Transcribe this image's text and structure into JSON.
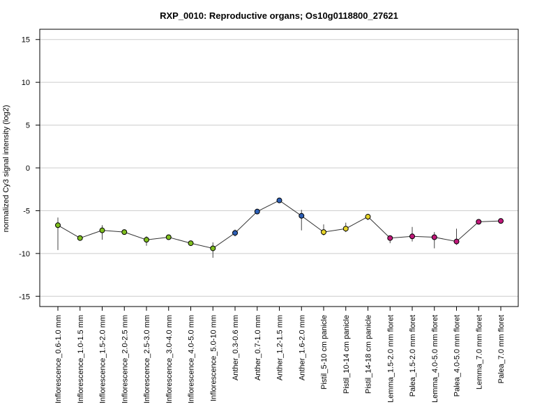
{
  "chart_data": {
    "type": "line",
    "title": "RXP_0010: Reproductive organs; Os10g0118800_27621",
    "xlabel": "",
    "ylabel": "normalized Cy3 signal intensity (log2)",
    "ylim": [
      -16.2,
      16.2
    ],
    "yticks": [
      -15,
      -10,
      -5,
      0,
      5,
      10,
      15
    ],
    "grid": true,
    "categories": [
      "Inflorescence_0.6-1.0 mm",
      "Inflorescence_1.0-1.5 mm",
      "Inflorescence_1.5-2.0 mm",
      "Inflorescence_2.0-2.5 mm",
      "Inflorescence_2.5-3.0 mm",
      "Inflorescence_3.0-4.0 mm",
      "Inflorescence_4.0-5.0 mm",
      "Inflorescence_5.0-10 mm",
      "Anther_0.3-0.6 mm",
      "Anther_0.7-1.0 mm",
      "Anther_1.2-1.5 mm",
      "Anther_1.6-2.0 mm",
      "Pistil_5-10 cm panicle",
      "Pistil_10-14 cm panicle",
      "Pistil_14-18 cm panicle",
      "Lemma_1.5-2.0 mm floret",
      "Palea_1.5-2.0 mm floret",
      "Lemma_4.0-5.0 mm floret",
      "Palea_4.0-5.0 mm floret",
      "Lemma_7.0 mm floret",
      "Palea_7.0 mm floret"
    ],
    "values": [
      -6.7,
      -8.2,
      -7.3,
      -7.5,
      -8.4,
      -8.1,
      -8.8,
      -9.4,
      -7.6,
      -5.1,
      -3.8,
      -5.6,
      -7.5,
      -7.1,
      -5.7,
      -8.2,
      -8.0,
      -8.1,
      -8.6,
      -6.3,
      -6.2
    ],
    "error_low": [
      -9.6,
      -8.5,
      -8.4,
      -7.7,
      -9.1,
      -8.4,
      -9.0,
      -10.5,
      -8.0,
      -5.3,
      -4.1,
      -7.3,
      -7.9,
      -7.5,
      -6.1,
      -8.8,
      -8.6,
      -9.4,
      -9.0,
      -6.5,
      -6.5
    ],
    "error_high": [
      -5.8,
      -7.9,
      -6.7,
      -7.3,
      -8.0,
      -7.8,
      -8.6,
      -8.7,
      -7.2,
      -4.9,
      -3.5,
      -4.9,
      -6.6,
      -6.4,
      -5.4,
      -8.0,
      -6.9,
      -7.5,
      -7.1,
      -6.1,
      -6.0
    ],
    "point_colors": [
      "#7fbf1f",
      "#7fbf1f",
      "#7fbf1f",
      "#7fbf1f",
      "#7fbf1f",
      "#7fbf1f",
      "#7fbf1f",
      "#7fbf1f",
      "#2d5fb5",
      "#2d5fb5",
      "#2d5fb5",
      "#2d5fb5",
      "#e6d42a",
      "#e6d42a",
      "#e6d42a",
      "#c0187a",
      "#c0187a",
      "#c0187a",
      "#c0187a",
      "#c0187a",
      "#c0187a"
    ],
    "line_color": "#333333",
    "grid_color": "#cccccc"
  }
}
